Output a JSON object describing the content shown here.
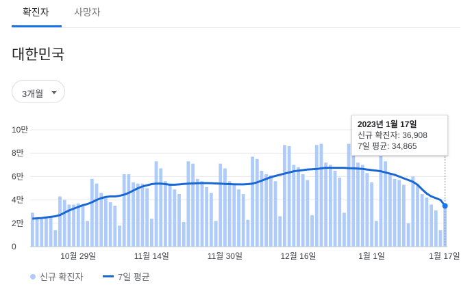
{
  "tabs": [
    {
      "label": "확진자",
      "active": true
    },
    {
      "label": "사망자",
      "active": false
    }
  ],
  "region": "대한민국",
  "range_selector": {
    "label": "3개월"
  },
  "tooltip": {
    "date": "2023년 1월 17일",
    "cases_line": "신규 확진자: 36,908",
    "avg_line": "7일 평균: 34,865"
  },
  "legend": [
    {
      "label": "신규 확진자",
      "color": "#aecbfa"
    },
    {
      "label": "7일 평균",
      "color": "#1967d2"
    }
  ],
  "chart_data": {
    "type": "bar",
    "ylim": [
      0,
      100000
    ],
    "yticks": [
      {
        "value": 0,
        "label": "0"
      },
      {
        "value": 20000,
        "label": "2만"
      },
      {
        "value": 40000,
        "label": "4만"
      },
      {
        "value": 60000,
        "label": "6만"
      },
      {
        "value": 80000,
        "label": "8만"
      },
      {
        "value": 100000,
        "label": "10만"
      }
    ],
    "xticks": [
      {
        "index": 10,
        "label": "10월 29일"
      },
      {
        "index": 26,
        "label": "11월 14일"
      },
      {
        "index": 42,
        "label": "11월 30일"
      },
      {
        "index": 58,
        "label": "12월 16일"
      },
      {
        "index": 74,
        "label": "1월 1일"
      },
      {
        "index": 90,
        "label": "1월 17일"
      }
    ],
    "series": [
      {
        "name": "신규 확진자",
        "type": "bar",
        "color": "#aecbfa",
        "values": [
          29000,
          24500,
          23500,
          25500,
          25000,
          14000,
          43000,
          40000,
          36000,
          36000,
          37000,
          35000,
          22000,
          58000,
          54000,
          46000,
          42000,
          38000,
          35000,
          18000,
          62000,
          62000,
          55000,
          54000,
          54000,
          50000,
          24000,
          73000,
          67000,
          56000,
          54000,
          49000,
          45000,
          21000,
          73000,
          71000,
          58000,
          56000,
          51000,
          46000,
          22000,
          71000,
          67000,
          56000,
          54000,
          49000,
          45000,
          23000,
          77000,
          75000,
          65000,
          62000,
          61000,
          56000,
          26000,
          87000,
          86000,
          70000,
          68000,
          62000,
          57000,
          27000,
          87000,
          88000,
          72000,
          70000,
          65000,
          59000,
          29000,
          88000,
          83000,
          72000,
          70000,
          63000,
          55000,
          22000,
          84000,
          73000,
          62000,
          58000,
          57000,
          53000,
          20000,
          60000,
          53000,
          45000,
          42000,
          36000,
          31000,
          14000,
          36908
        ]
      },
      {
        "name": "7일 평균",
        "type": "line",
        "color": "#1967d2",
        "values": [
          24000,
          24200,
          24500,
          25000,
          25500,
          26000,
          27000,
          29000,
          31000,
          32500,
          34000,
          35500,
          36500,
          38000,
          40000,
          41500,
          42500,
          43000,
          43000,
          43500,
          44500,
          46000,
          48000,
          50000,
          51500,
          52500,
          53500,
          54000,
          54000,
          53500,
          53000,
          53000,
          53300,
          53600,
          53900,
          54100,
          54300,
          54400,
          54400,
          54300,
          54100,
          53900,
          53700,
          53500,
          53400,
          53300,
          53300,
          53500,
          54000,
          55000,
          56500,
          58000,
          59500,
          60500,
          61500,
          62500,
          63500,
          64500,
          65000,
          65500,
          66000,
          66200,
          66500,
          67000,
          67500,
          67500,
          67500,
          67500,
          67500,
          67200,
          67000,
          66800,
          66500,
          66000,
          65500,
          65000,
          64500,
          63500,
          62500,
          61500,
          60000,
          58500,
          57000,
          55500,
          53000,
          49000,
          45500,
          43000,
          41500,
          40000,
          34865
        ]
      }
    ]
  }
}
